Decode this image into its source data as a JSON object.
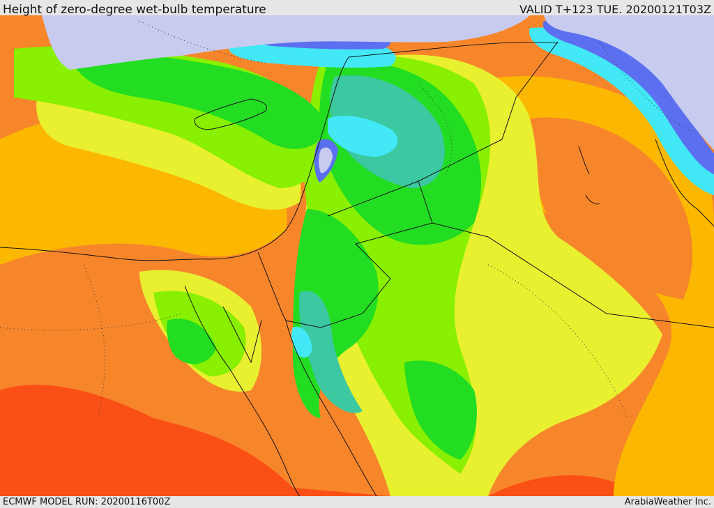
{
  "header": {
    "title": "Height of zero-degree wet-bulb temperature",
    "valid": "VALID T+123 TUE. 20200121T03Z"
  },
  "footer": {
    "model_run": "ECMWF MODEL RUN: 20200116T00Z",
    "credit": "ArabiaWeather Inc."
  },
  "colors": {
    "below_threshold": "#c8cbf0",
    "very_low": "#5b6ff0",
    "low": "#42e8f5",
    "teal": "#3cc8a0",
    "green": "#22dd22",
    "yellow_green": "#88f000",
    "yellow": "#e8f030",
    "orange_light": "#fcb800",
    "orange": "#f7862b",
    "red_orange": "#fb5015",
    "boundary_line": "#111111"
  }
}
